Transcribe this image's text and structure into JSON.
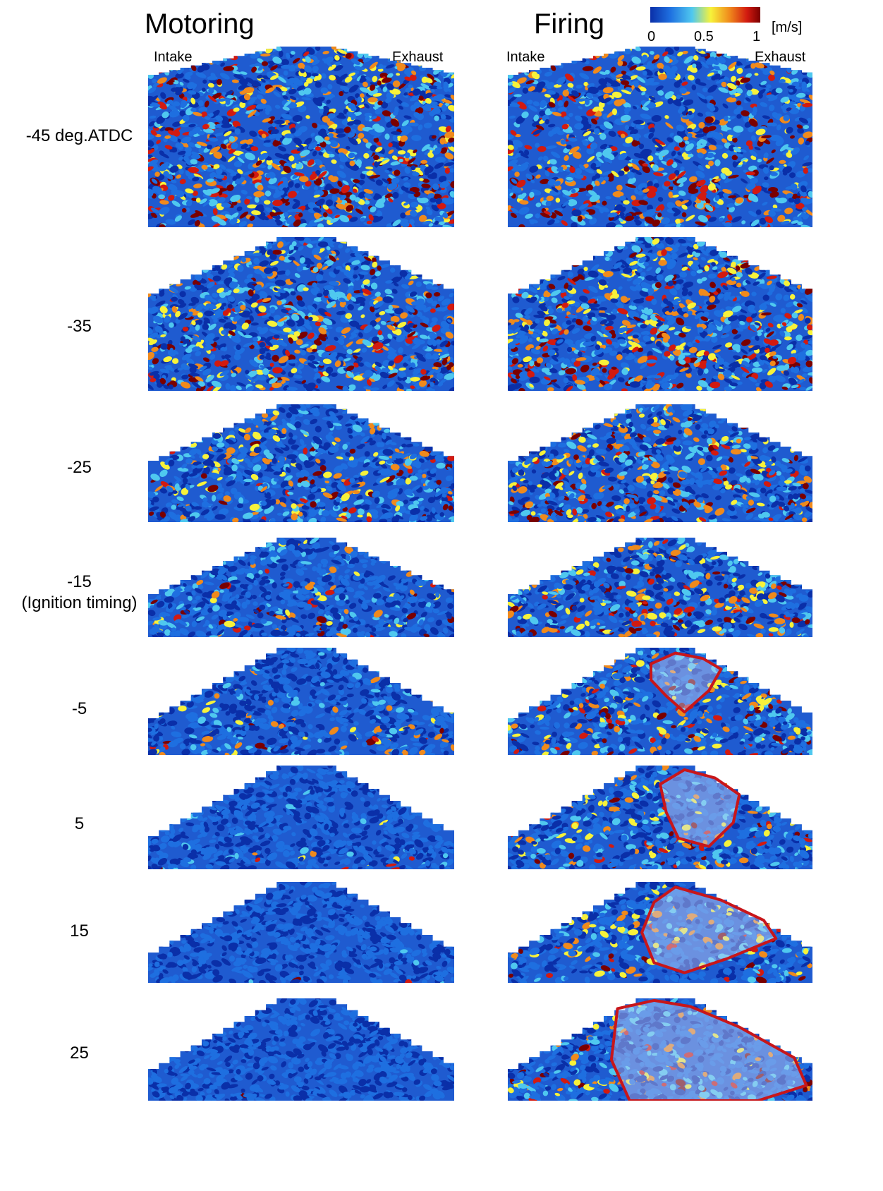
{
  "figure": {
    "columns": [
      {
        "title": "Motoring",
        "left_label": "Intake",
        "right_label": "Exhaust"
      },
      {
        "title": "Firing",
        "left_label": "Intake",
        "right_label": "Exhaust"
      }
    ],
    "rows": [
      {
        "label_line1": "-45 deg.ATDC",
        "label_line2": "",
        "flame": false
      },
      {
        "label_line1": "-35",
        "label_line2": "",
        "flame": false
      },
      {
        "label_line1": "-25",
        "label_line2": "",
        "flame": false
      },
      {
        "label_line1": "-15",
        "label_line2": "(Ignition timing)",
        "flame": false
      },
      {
        "label_line1": "-5",
        "label_line2": "",
        "flame": true
      },
      {
        "label_line1": "5",
        "label_line2": "",
        "flame": true
      },
      {
        "label_line1": "15",
        "label_line2": "",
        "flame": true
      },
      {
        "label_line1": "25",
        "label_line2": "",
        "flame": true
      }
    ],
    "colorbar": {
      "ticks": [
        "0",
        "0.5",
        "1"
      ],
      "unit": "[m/s]",
      "colors": [
        "#0a2fa8",
        "#1e6fe0",
        "#4fc8ef",
        "#f7f23a",
        "#f08a1c",
        "#d21a10",
        "#7a0000"
      ]
    },
    "flame_outline_color": "#c8161a"
  }
}
